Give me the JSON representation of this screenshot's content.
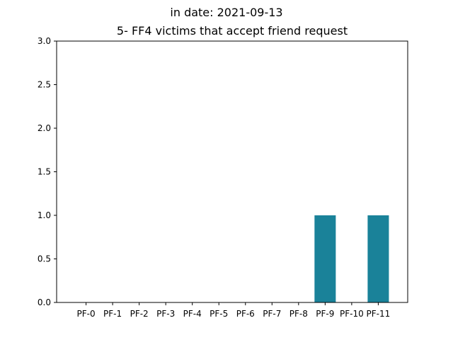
{
  "chart_data": {
    "type": "bar",
    "suptitle": "in date: 2021-09-13",
    "title": "5- FF4 victims that accept friend request",
    "xlabel": "",
    "ylabel": "",
    "categories": [
      "PF-0",
      "PF-1",
      "PF-2",
      "PF-3",
      "PF-4",
      "PF-5",
      "PF-6",
      "PF-7",
      "PF-8",
      "PF-9",
      "PF-10",
      "PF-11"
    ],
    "values": [
      0,
      0,
      0,
      0,
      0,
      0,
      0,
      0,
      0,
      1,
      0,
      1
    ],
    "ylim": [
      0,
      3
    ],
    "yticks": [
      "0.0",
      "0.5",
      "1.0",
      "1.5",
      "2.0",
      "2.5",
      "3.0"
    ],
    "bar_color": "#1a8299",
    "grid": false,
    "legend": "none"
  }
}
